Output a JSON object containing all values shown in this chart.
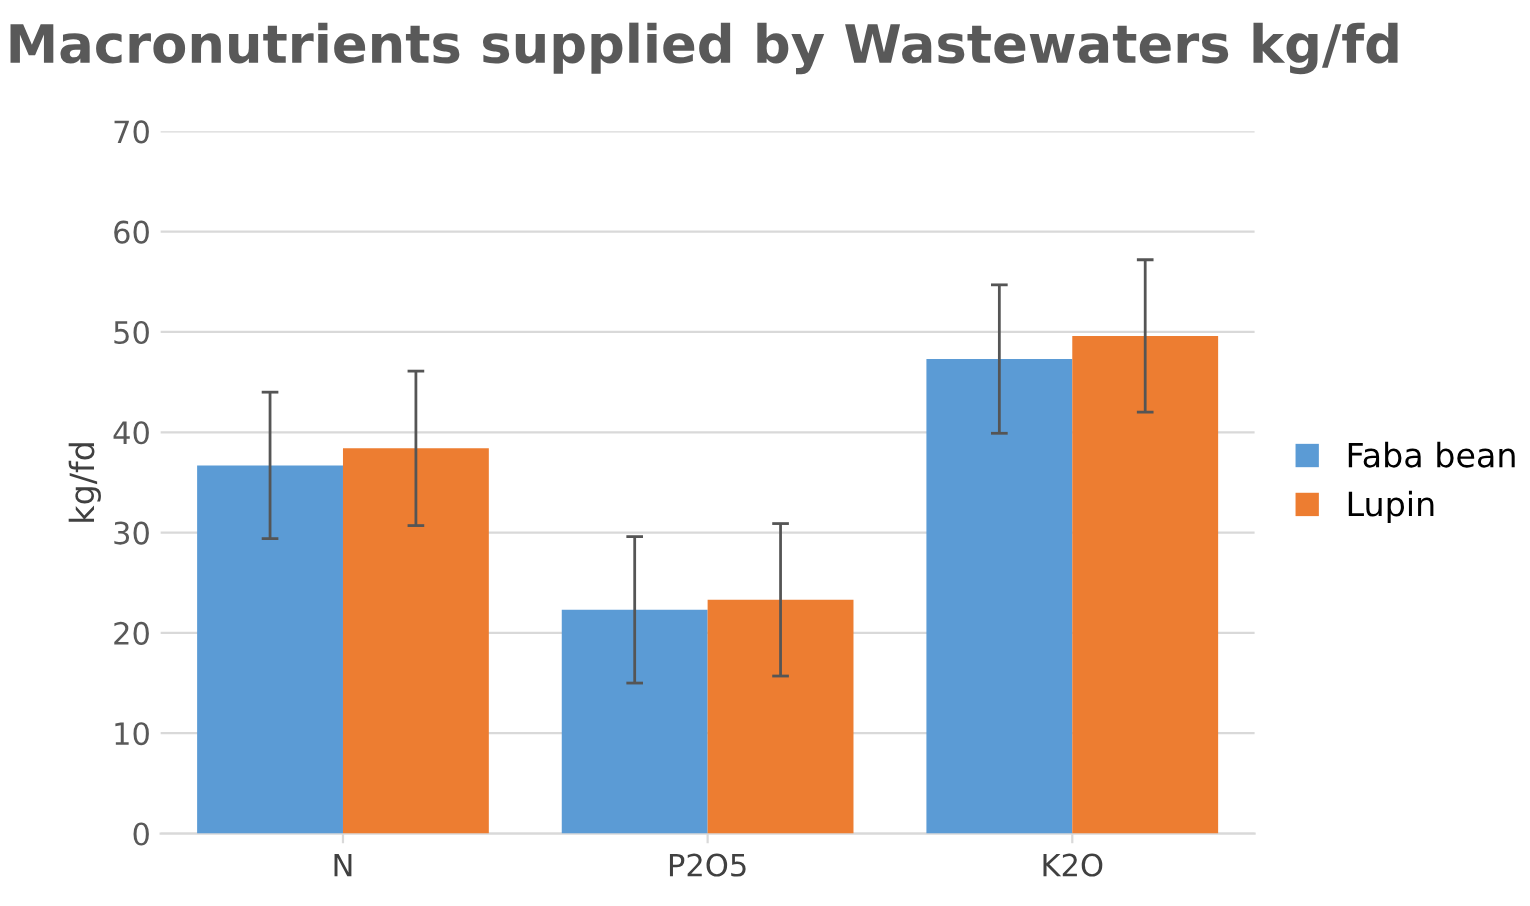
{
  "chart_data": {
    "type": "bar",
    "title": "Macronutrients supplied by Wastewaters kg/fd",
    "ylabel": "kg/fd",
    "categories": [
      "N",
      "P2O5",
      "K2O"
    ],
    "series": [
      {
        "name": "Faba bean",
        "color": "#5b9bd5",
        "values": [
          36.7,
          22.3,
          47.3
        ],
        "errors": [
          7.3,
          7.3,
          7.4
        ]
      },
      {
        "name": "Lupin",
        "color": "#ed7d31",
        "values": [
          38.4,
          23.3,
          49.6
        ],
        "errors": [
          7.7,
          7.6,
          7.6
        ]
      }
    ],
    "ylim": [
      0,
      70
    ],
    "yticks": [
      0,
      10,
      20,
      30,
      40,
      50,
      60,
      70
    ],
    "grid": "y",
    "legend": "right"
  }
}
